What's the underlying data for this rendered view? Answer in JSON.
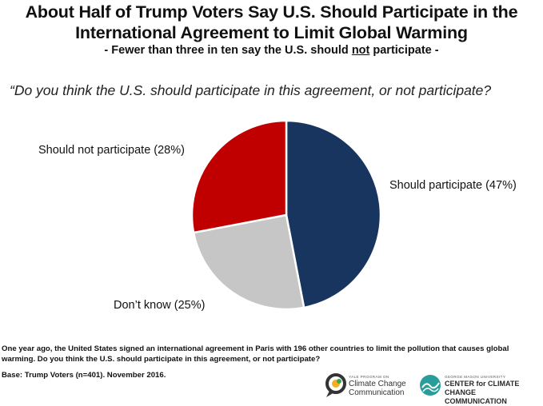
{
  "chart_data": {
    "type": "pie",
    "title_line1": "About Half of Trump Voters Say U.S. Should Participate in the",
    "title_line2": "International Agreement to Limit Global Warming",
    "subtitle_prefix": "- Fewer than three in ten say the U.S. should ",
    "subtitle_underlined": "not",
    "subtitle_suffix": " participate -",
    "question": "“Do you think the U.S. should participate in this agreement, or not participate?",
    "slices": [
      {
        "name": "Should participate",
        "value": 47,
        "label": "Should participate (47%)",
        "color": "#17355e"
      },
      {
        "name": "Don’t know",
        "value": 25,
        "label": "Don’t know (25%)",
        "color": "#c6c6c6"
      },
      {
        "name": "Should not participate",
        "value": 28,
        "label": "Should not participate (28%)",
        "color": "#c00000"
      }
    ]
  },
  "footnote": "One year ago, the United States signed an international agreement in Paris with 196 other countries to limit the pollution that causes global warming. Do you think the U.S. should participate in this agreement, or not participate?",
  "base": "Base: Trump Voters (n=401). November 2016.",
  "logos": {
    "yale_small": "YALE PROGRAM ON",
    "yale_line1": "Climate Change",
    "yale_line2": "Communication",
    "gmu_small": "GEORGE MASON UNIVERSITY",
    "gmu_line1": "CENTER for CLIMATE CHANGE",
    "gmu_line2": "COMMUNICATION"
  }
}
